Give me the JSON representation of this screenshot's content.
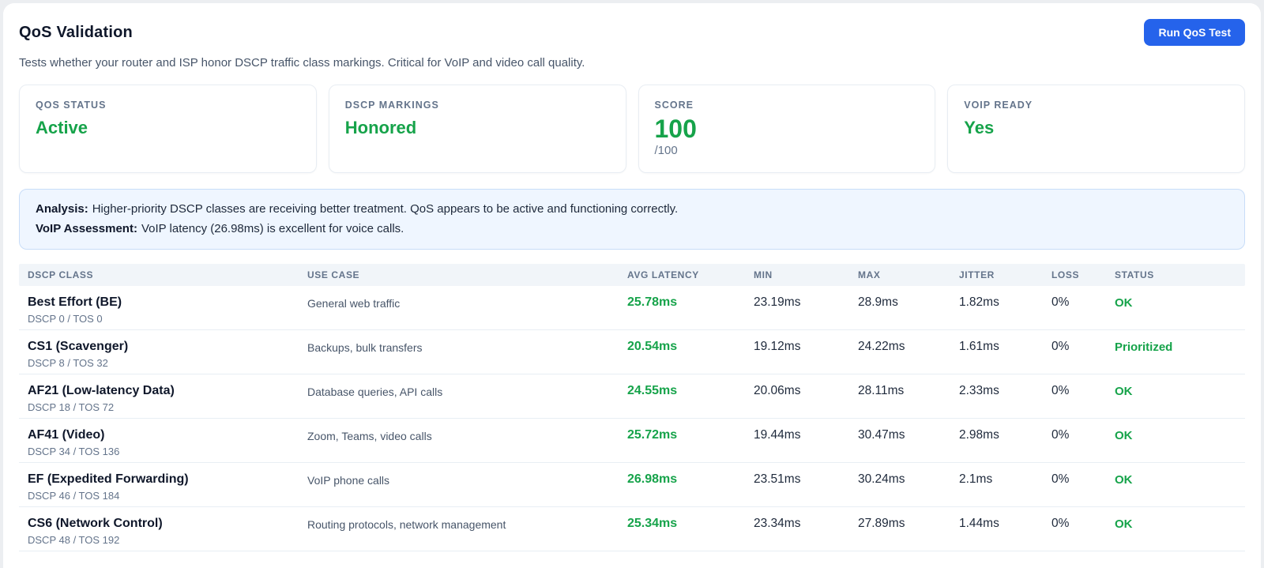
{
  "header": {
    "title": "QoS Validation",
    "subtitle": "Tests whether your router and ISP honor DSCP traffic class markings. Critical for VoIP and video call quality.",
    "run_button_label": "Run QoS Test"
  },
  "stats": [
    {
      "label": "QOS STATUS",
      "value": "Active"
    },
    {
      "label": "DSCP MARKINGS",
      "value": "Honored"
    },
    {
      "label": "SCORE",
      "value": "100",
      "suffix": "/100"
    },
    {
      "label": "VOIP READY",
      "value": "Yes"
    }
  ],
  "analysis": {
    "line1_label": "Analysis:",
    "line1_text": "Higher-priority DSCP classes are receiving better treatment. QoS appears to be active and functioning correctly.",
    "line2_label": "VoIP Assessment:",
    "line2_text": "VoIP latency (26.98ms) is excellent for voice calls."
  },
  "table": {
    "columns": [
      "DSCP CLASS",
      "USE CASE",
      "AVG LATENCY",
      "MIN",
      "MAX",
      "JITTER",
      "LOSS",
      "STATUS"
    ],
    "rows": [
      {
        "class_name": "Best Effort (BE)",
        "class_sub": "DSCP 0 / TOS 0",
        "use_case": "General web traffic",
        "avg_latency": "25.78ms",
        "min": "23.19ms",
        "max": "28.9ms",
        "jitter": "1.82ms",
        "loss": "0%",
        "status": "OK"
      },
      {
        "class_name": "CS1 (Scavenger)",
        "class_sub": "DSCP 8 / TOS 32",
        "use_case": "Backups, bulk transfers",
        "avg_latency": "20.54ms",
        "min": "19.12ms",
        "max": "24.22ms",
        "jitter": "1.61ms",
        "loss": "0%",
        "status": "Prioritized"
      },
      {
        "class_name": "AF21 (Low-latency Data)",
        "class_sub": "DSCP 18 / TOS 72",
        "use_case": "Database queries, API calls",
        "avg_latency": "24.55ms",
        "min": "20.06ms",
        "max": "28.11ms",
        "jitter": "2.33ms",
        "loss": "0%",
        "status": "OK"
      },
      {
        "class_name": "AF41 (Video)",
        "class_sub": "DSCP 34 / TOS 136",
        "use_case": "Zoom, Teams, video calls",
        "avg_latency": "25.72ms",
        "min": "19.44ms",
        "max": "30.47ms",
        "jitter": "2.98ms",
        "loss": "0%",
        "status": "OK"
      },
      {
        "class_name": "EF (Expedited Forwarding)",
        "class_sub": "DSCP 46 / TOS 184",
        "use_case": "VoIP phone calls",
        "avg_latency": "26.98ms",
        "min": "23.51ms",
        "max": "30.24ms",
        "jitter": "2.1ms",
        "loss": "0%",
        "status": "OK"
      },
      {
        "class_name": "CS6 (Network Control)",
        "class_sub": "DSCP 48 / TOS 192",
        "use_case": "Routing protocols, network management",
        "avg_latency": "25.34ms",
        "min": "23.34ms",
        "max": "27.89ms",
        "jitter": "1.44ms",
        "loss": "0%",
        "status": "OK"
      }
    ]
  },
  "colors": {
    "accent_green": "#16a34a",
    "button_blue": "#2563eb",
    "analysis_bg": "#eff6ff",
    "table_header_bg": "#f1f5f9"
  }
}
